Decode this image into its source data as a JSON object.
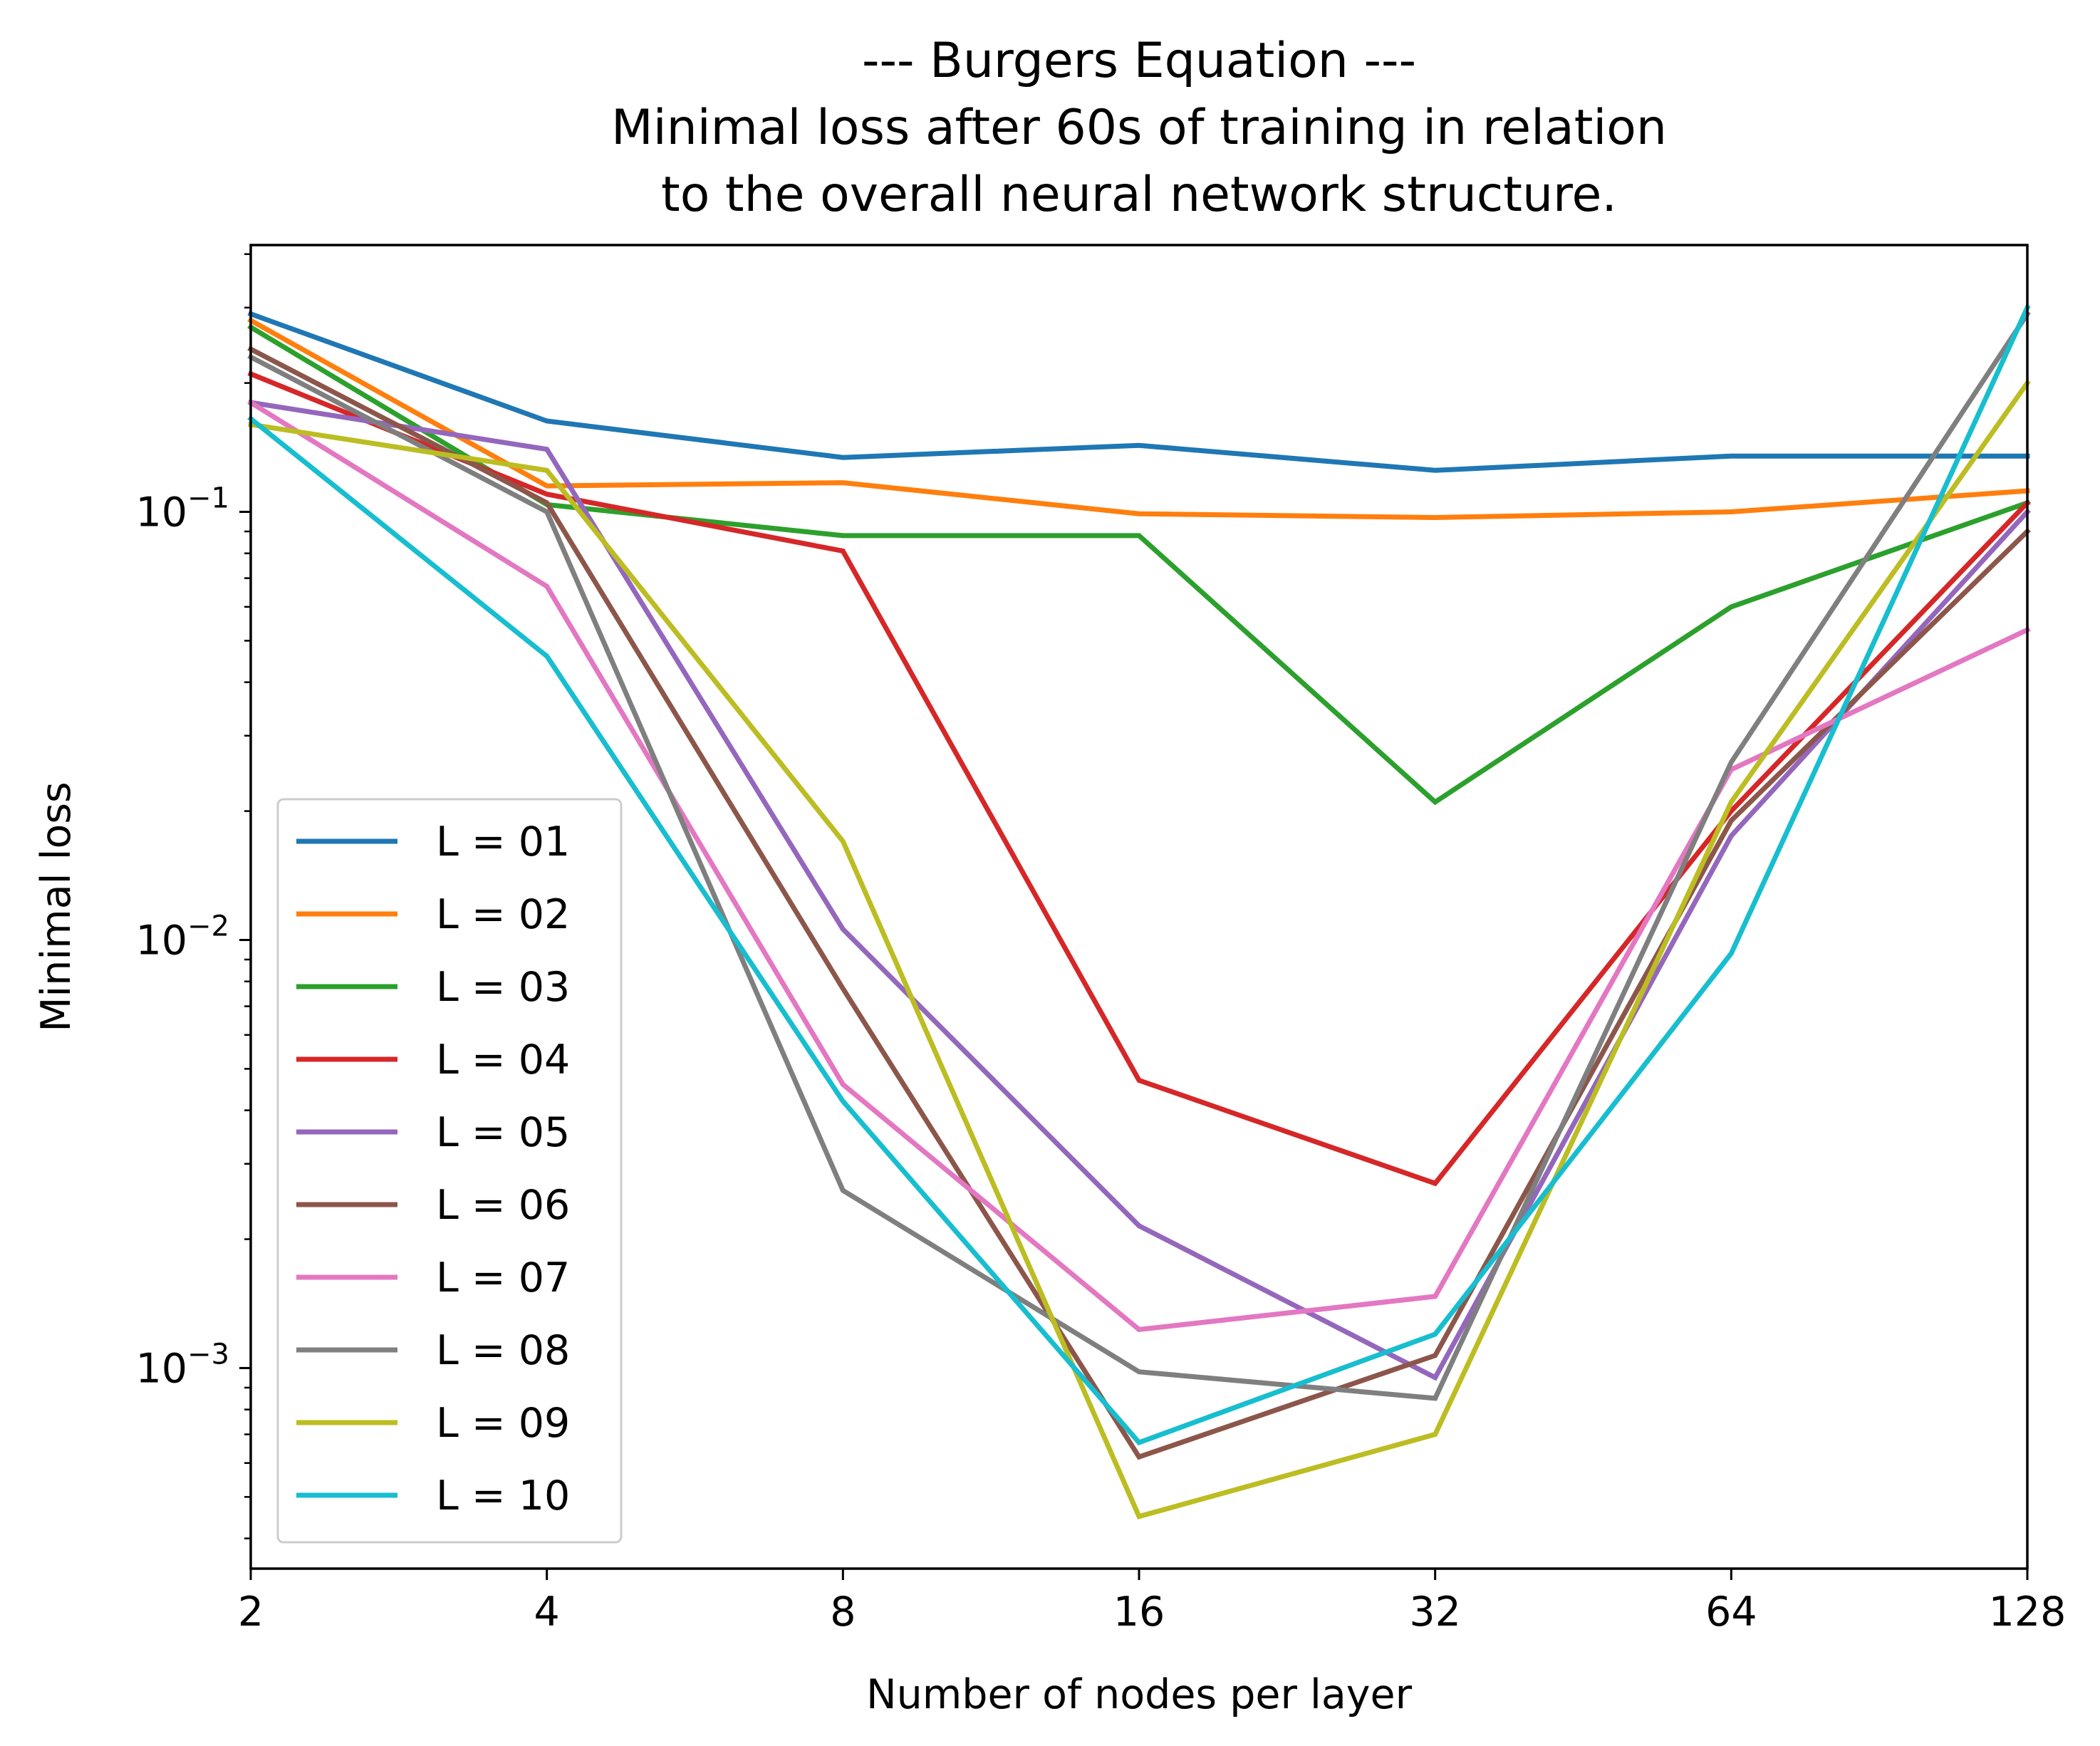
{
  "chart_data": {
    "type": "line",
    "title_lines": [
      "--- Burgers Equation ---",
      "Minimal loss after 60s of training in relation",
      "to the overall neural network structure."
    ],
    "xlabel": "Number of nodes per layer",
    "ylabel": "Minimal loss",
    "x": [
      2,
      4,
      8,
      16,
      32,
      64,
      128
    ],
    "x_tick_labels": [
      "2",
      "4",
      "8",
      "16",
      "32",
      "64",
      "128"
    ],
    "x_scale": "log2",
    "xlim": [
      2,
      128
    ],
    "y_scale": "log",
    "ylim": [
      0.00034,
      0.42
    ],
    "y_major_ticks": [
      {
        "value": 0.1,
        "base": "10",
        "exp": "−1"
      },
      {
        "value": 0.01,
        "base": "10",
        "exp": "−2"
      },
      {
        "value": 0.001,
        "base": "10",
        "exp": "−3"
      }
    ],
    "grid": false,
    "legend_position": "lower-left",
    "series": [
      {
        "name": "L = 01",
        "color": "#1f77b4",
        "values": [
          0.29,
          0.163,
          0.134,
          0.143,
          0.125,
          0.135,
          0.135
        ]
      },
      {
        "name": "L = 02",
        "color": "#ff7f0e",
        "values": [
          0.28,
          0.115,
          0.117,
          0.099,
          0.097,
          0.1,
          0.112
        ]
      },
      {
        "name": "L = 03",
        "color": "#2ca02c",
        "values": [
          0.27,
          0.104,
          0.088,
          0.088,
          0.021,
          0.06,
          0.105
        ]
      },
      {
        "name": "L = 04",
        "color": "#d62728",
        "values": [
          0.21,
          0.11,
          0.081,
          0.0047,
          0.0027,
          0.02,
          0.105
        ]
      },
      {
        "name": "L = 05",
        "color": "#9467bd",
        "values": [
          0.18,
          0.14,
          0.0106,
          0.00215,
          0.00095,
          0.0175,
          0.1
        ]
      },
      {
        "name": "L = 06",
        "color": "#8c564b",
        "values": [
          0.24,
          0.105,
          0.0077,
          0.00062,
          0.00107,
          0.019,
          0.09
        ]
      },
      {
        "name": "L = 07",
        "color": "#e377c2",
        "values": [
          0.18,
          0.067,
          0.0046,
          0.00123,
          0.00147,
          0.025,
          0.053
        ]
      },
      {
        "name": "L = 08",
        "color": "#7f7f7f",
        "values": [
          0.23,
          0.1,
          0.0026,
          0.00098,
          0.00085,
          0.026,
          0.29
        ]
      },
      {
        "name": "L = 09",
        "color": "#bcbd22",
        "values": [
          0.16,
          0.125,
          0.017,
          0.00045,
          0.0007,
          0.021,
          0.2
        ]
      },
      {
        "name": "L = 10",
        "color": "#17becf",
        "values": [
          0.165,
          0.046,
          0.0042,
          0.00067,
          0.0012,
          0.0093,
          0.3
        ]
      }
    ]
  }
}
